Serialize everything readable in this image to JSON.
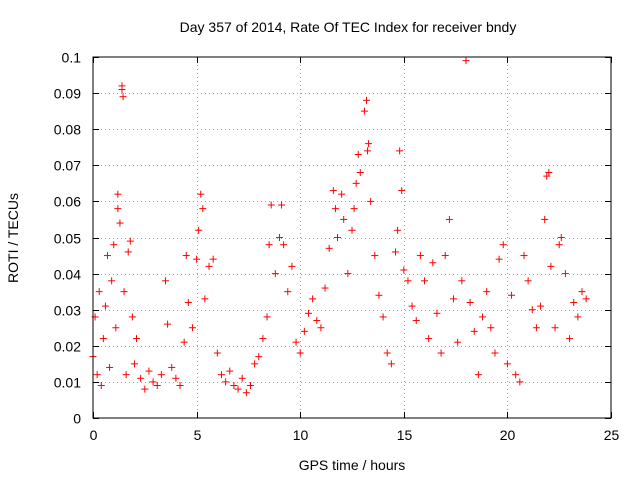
{
  "chart_data": {
    "type": "scatter",
    "title": "Day 357 of 2014, Rate Of TEC Index for receiver bndy",
    "xlabel": "GPS time / hours",
    "ylabel": "ROTI / TECUs",
    "xlim": [
      0,
      25
    ],
    "ylim": [
      0,
      0.1
    ],
    "x_ticks": [
      "0",
      "5",
      "10",
      "15",
      "20",
      "25"
    ],
    "y_ticks": [
      "0",
      "0.01",
      "0.02",
      "0.03",
      "0.04",
      "0.05",
      "0.06",
      "0.07",
      "0.08",
      "0.09",
      "0.1"
    ],
    "x_tick_values": [
      0,
      5,
      10,
      15,
      20,
      25
    ],
    "y_tick_values": [
      0,
      0.01,
      0.02,
      0.03,
      0.04,
      0.05,
      0.06,
      0.07,
      0.08,
      0.09,
      0.1
    ],
    "grid": true,
    "marker": "+",
    "color": "#ff0000",
    "series": [
      {
        "name": "ROTI",
        "points": [
          [
            0.0,
            0.017
          ],
          [
            0.1,
            0.028
          ],
          [
            0.2,
            0.012
          ],
          [
            0.3,
            0.035
          ],
          [
            0.4,
            0.009
          ],
          [
            0.5,
            0.022
          ],
          [
            0.6,
            0.031
          ],
          [
            0.7,
            0.045
          ],
          [
            0.8,
            0.014
          ],
          [
            0.9,
            0.038
          ],
          [
            1.0,
            0.048
          ],
          [
            1.1,
            0.025
          ],
          [
            1.2,
            0.058
          ],
          [
            1.2,
            0.062
          ],
          [
            1.3,
            0.054
          ],
          [
            1.4,
            0.091
          ],
          [
            1.4,
            0.092
          ],
          [
            1.45,
            0.089
          ],
          [
            1.5,
            0.035
          ],
          [
            1.6,
            0.012
          ],
          [
            1.7,
            0.046
          ],
          [
            1.8,
            0.049
          ],
          [
            1.9,
            0.028
          ],
          [
            2.0,
            0.015
          ],
          [
            2.1,
            0.022
          ],
          [
            2.3,
            0.011
          ],
          [
            2.5,
            0.008
          ],
          [
            2.7,
            0.013
          ],
          [
            2.9,
            0.01
          ],
          [
            3.1,
            0.009
          ],
          [
            3.3,
            0.012
          ],
          [
            3.5,
            0.038
          ],
          [
            3.6,
            0.026
          ],
          [
            3.8,
            0.014
          ],
          [
            4.0,
            0.011
          ],
          [
            4.2,
            0.009
          ],
          [
            4.4,
            0.021
          ],
          [
            4.5,
            0.045
          ],
          [
            4.6,
            0.032
          ],
          [
            4.8,
            0.025
          ],
          [
            5.0,
            0.044
          ],
          [
            5.1,
            0.052
          ],
          [
            5.2,
            0.062
          ],
          [
            5.3,
            0.058
          ],
          [
            5.4,
            0.033
          ],
          [
            5.6,
            0.042
          ],
          [
            5.8,
            0.044
          ],
          [
            6.0,
            0.018
          ],
          [
            6.2,
            0.012
          ],
          [
            6.4,
            0.01
          ],
          [
            6.6,
            0.013
          ],
          [
            6.8,
            0.009
          ],
          [
            7.0,
            0.008
          ],
          [
            7.2,
            0.011
          ],
          [
            7.4,
            0.007
          ],
          [
            7.6,
            0.009
          ],
          [
            7.8,
            0.015
          ],
          [
            8.0,
            0.017
          ],
          [
            8.2,
            0.022
          ],
          [
            8.4,
            0.028
          ],
          [
            8.5,
            0.048
          ],
          [
            8.6,
            0.059
          ],
          [
            8.8,
            0.04
          ],
          [
            9.0,
            0.05
          ],
          [
            9.1,
            0.059
          ],
          [
            9.2,
            0.048
          ],
          [
            9.4,
            0.035
          ],
          [
            9.6,
            0.042
          ],
          [
            9.8,
            0.021
          ],
          [
            10.0,
            0.018
          ],
          [
            10.2,
            0.024
          ],
          [
            10.4,
            0.029
          ],
          [
            10.6,
            0.033
          ],
          [
            10.8,
            0.027
          ],
          [
            11.0,
            0.025
          ],
          [
            11.2,
            0.036
          ],
          [
            11.4,
            0.047
          ],
          [
            11.6,
            0.063
          ],
          [
            11.7,
            0.058
          ],
          [
            11.8,
            0.05
          ],
          [
            12.0,
            0.062
          ],
          [
            12.1,
            0.055
          ],
          [
            12.3,
            0.04
          ],
          [
            12.5,
            0.052
          ],
          [
            12.6,
            0.058
          ],
          [
            12.7,
            0.065
          ],
          [
            12.8,
            0.073
          ],
          [
            12.9,
            0.068
          ],
          [
            13.1,
            0.085
          ],
          [
            13.2,
            0.088
          ],
          [
            13.25,
            0.074
          ],
          [
            13.3,
            0.076
          ],
          [
            13.4,
            0.06
          ],
          [
            13.6,
            0.045
          ],
          [
            13.8,
            0.034
          ],
          [
            14.0,
            0.028
          ],
          [
            14.2,
            0.018
          ],
          [
            14.4,
            0.015
          ],
          [
            14.6,
            0.046
          ],
          [
            14.7,
            0.052
          ],
          [
            14.8,
            0.074
          ],
          [
            14.9,
            0.063
          ],
          [
            15.0,
            0.041
          ],
          [
            15.2,
            0.038
          ],
          [
            15.4,
            0.031
          ],
          [
            15.6,
            0.027
          ],
          [
            15.8,
            0.045
          ],
          [
            16.0,
            0.038
          ],
          [
            16.2,
            0.022
          ],
          [
            16.4,
            0.043
          ],
          [
            16.6,
            0.029
          ],
          [
            16.8,
            0.018
          ],
          [
            17.0,
            0.045
          ],
          [
            17.2,
            0.055
          ],
          [
            17.4,
            0.033
          ],
          [
            17.6,
            0.021
          ],
          [
            17.8,
            0.038
          ],
          [
            18.0,
            0.099
          ],
          [
            18.2,
            0.032
          ],
          [
            18.4,
            0.024
          ],
          [
            18.6,
            0.012
          ],
          [
            18.8,
            0.028
          ],
          [
            19.0,
            0.035
          ],
          [
            19.2,
            0.025
          ],
          [
            19.4,
            0.018
          ],
          [
            19.6,
            0.044
          ],
          [
            19.8,
            0.048
          ],
          [
            20.0,
            0.015
          ],
          [
            20.2,
            0.034
          ],
          [
            20.4,
            0.012
          ],
          [
            20.6,
            0.01
          ],
          [
            20.8,
            0.045
          ],
          [
            21.0,
            0.038
          ],
          [
            21.2,
            0.03
          ],
          [
            21.4,
            0.025
          ],
          [
            21.6,
            0.031
          ],
          [
            21.8,
            0.055
          ],
          [
            21.9,
            0.067
          ],
          [
            22.0,
            0.068
          ],
          [
            22.1,
            0.042
          ],
          [
            22.3,
            0.025
          ],
          [
            22.5,
            0.048
          ],
          [
            22.6,
            0.05
          ],
          [
            22.8,
            0.04
          ],
          [
            23.0,
            0.022
          ],
          [
            23.2,
            0.032
          ],
          [
            23.4,
            0.028
          ],
          [
            23.6,
            0.035
          ],
          [
            23.8,
            0.033
          ]
        ]
      }
    ]
  }
}
